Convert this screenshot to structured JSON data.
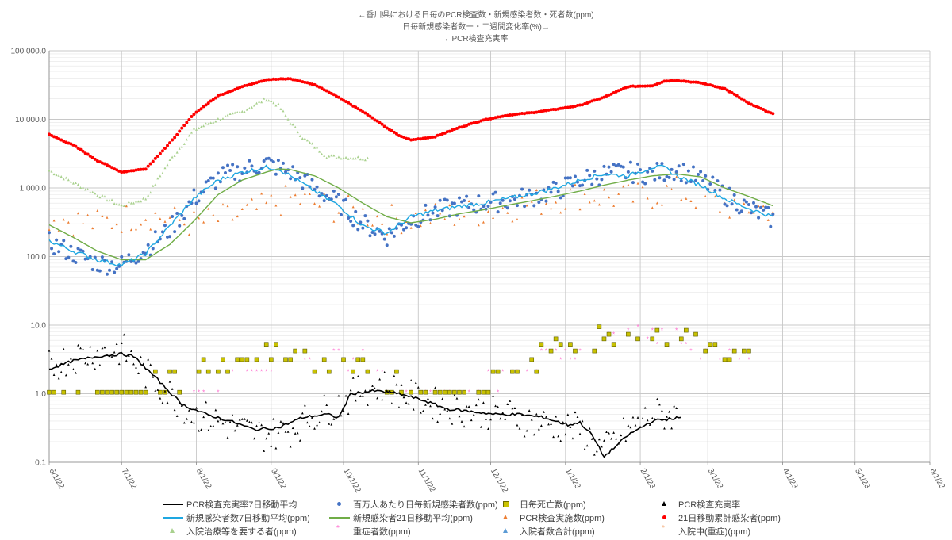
{
  "titles": {
    "line1": "←香川県における日毎のPCR検査数・新規感染者数・死者数(ppm)",
    "line2": "日毎新規感染者数ー・二週間変化率(%)→",
    "line3": "←PCR検査充実率"
  },
  "chart_data": {
    "type": "scatter",
    "y_scale": "log",
    "ylim": [
      0.1,
      100000
    ],
    "y_ticks": [
      "0.1",
      "1.0",
      "10.0",
      "100.0",
      "1,000.0",
      "10,000.0",
      "100,000.0"
    ],
    "x_ticks": [
      "6/1/22",
      "7/1/22",
      "8/1/22",
      "9/1/22",
      "10/1/22",
      "11/1/22",
      "12/1/22",
      "1/1/23",
      "2/1/23",
      "3/1/23",
      "4/1/23",
      "5/1/23",
      "6/1/23"
    ],
    "x_range": [
      "2022-06-01",
      "2023-06-01"
    ],
    "grid": true,
    "legend_position": "bottom",
    "series_anchors": {
      "cumulative_21d": [
        [
          0,
          6000
        ],
        [
          10,
          4200
        ],
        [
          20,
          2500
        ],
        [
          30,
          1700
        ],
        [
          40,
          1900
        ],
        [
          50,
          4500
        ],
        [
          60,
          12000
        ],
        [
          70,
          22000
        ],
        [
          80,
          30000
        ],
        [
          90,
          38000
        ],
        [
          100,
          39000
        ],
        [
          110,
          32000
        ],
        [
          120,
          21000
        ],
        [
          130,
          13000
        ],
        [
          140,
          7500
        ],
        [
          145,
          5800
        ],
        [
          150,
          5000
        ],
        [
          160,
          5600
        ],
        [
          170,
          7600
        ],
        [
          180,
          9800
        ],
        [
          190,
          11500
        ],
        [
          200,
          12500
        ],
        [
          210,
          14000
        ],
        [
          220,
          16000
        ],
        [
          230,
          21000
        ],
        [
          240,
          30000
        ],
        [
          250,
          31000
        ],
        [
          255,
          36000
        ],
        [
          260,
          37000
        ],
        [
          270,
          34000
        ],
        [
          280,
          28000
        ],
        [
          285,
          22000
        ],
        [
          290,
          17000
        ],
        [
          300,
          12000
        ]
      ],
      "per_million_daily": [
        [
          0,
          160
        ],
        [
          10,
          110
        ],
        [
          20,
          80
        ],
        [
          30,
          75
        ],
        [
          40,
          130
        ],
        [
          50,
          250
        ],
        [
          60,
          700
        ],
        [
          70,
          1400
        ],
        [
          80,
          1800
        ],
        [
          90,
          2300
        ],
        [
          100,
          1700
        ],
        [
          110,
          1000
        ],
        [
          120,
          600
        ],
        [
          130,
          300
        ],
        [
          140,
          200
        ],
        [
          150,
          350
        ],
        [
          160,
          450
        ],
        [
          170,
          550
        ],
        [
          180,
          600
        ],
        [
          190,
          650
        ],
        [
          200,
          750
        ],
        [
          210,
          900
        ],
        [
          220,
          1300
        ],
        [
          230,
          1600
        ],
        [
          240,
          1700
        ],
        [
          250,
          1600
        ],
        [
          260,
          1900
        ],
        [
          270,
          1300
        ],
        [
          280,
          800
        ],
        [
          290,
          500
        ],
        [
          300,
          350
        ]
      ],
      "ma7": [
        [
          0,
          170
        ],
        [
          10,
          120
        ],
        [
          20,
          90
        ],
        [
          30,
          75
        ],
        [
          40,
          110
        ],
        [
          50,
          280
        ],
        [
          60,
          700
        ],
        [
          70,
          1300
        ],
        [
          80,
          1700
        ],
        [
          90,
          2000
        ],
        [
          95,
          1900
        ],
        [
          100,
          1500
        ],
        [
          110,
          900
        ],
        [
          120,
          550
        ],
        [
          130,
          280
        ],
        [
          140,
          220
        ],
        [
          150,
          380
        ],
        [
          160,
          470
        ],
        [
          170,
          540
        ],
        [
          180,
          600
        ],
        [
          190,
          700
        ],
        [
          200,
          820
        ],
        [
          210,
          1000
        ],
        [
          220,
          1300
        ],
        [
          230,
          1600
        ],
        [
          240,
          1500
        ],
        [
          250,
          2000
        ],
        [
          255,
          2000
        ],
        [
          260,
          1500
        ],
        [
          270,
          1100
        ],
        [
          280,
          700
        ],
        [
          290,
          500
        ],
        [
          300,
          380
        ]
      ],
      "ma21": [
        [
          0,
          290
        ],
        [
          10,
          190
        ],
        [
          20,
          120
        ],
        [
          30,
          90
        ],
        [
          40,
          90
        ],
        [
          50,
          150
        ],
        [
          60,
          330
        ],
        [
          70,
          800
        ],
        [
          80,
          1300
        ],
        [
          90,
          1700
        ],
        [
          95,
          1900
        ],
        [
          100,
          1850
        ],
        [
          110,
          1500
        ],
        [
          120,
          1000
        ],
        [
          130,
          600
        ],
        [
          140,
          380
        ],
        [
          150,
          310
        ],
        [
          160,
          350
        ],
        [
          170,
          420
        ],
        [
          180,
          480
        ],
        [
          190,
          560
        ],
        [
          200,
          650
        ],
        [
          210,
          760
        ],
        [
          220,
          900
        ],
        [
          230,
          1100
        ],
        [
          240,
          1300
        ],
        [
          250,
          1500
        ],
        [
          260,
          1600
        ],
        [
          270,
          1450
        ],
        [
          280,
          1000
        ],
        [
          290,
          750
        ],
        [
          300,
          550
        ]
      ],
      "pcr_tests": [
        [
          0,
          380
        ],
        [
          20,
          300
        ],
        [
          40,
          420
        ],
        [
          60,
          300
        ],
        [
          80,
          400
        ],
        [
          100,
          700
        ],
        [
          120,
          500
        ],
        [
          140,
          350
        ],
        [
          160,
          380
        ],
        [
          180,
          450
        ],
        [
          200,
          600
        ],
        [
          220,
          800
        ],
        [
          240,
          700
        ],
        [
          260,
          900
        ],
        [
          280,
          550
        ],
        [
          300,
          500
        ]
      ],
      "hospital_need": [
        [
          0,
          1800
        ],
        [
          10,
          1200
        ],
        [
          20,
          800
        ],
        [
          30,
          550
        ],
        [
          40,
          700
        ],
        [
          50,
          2500
        ],
        [
          60,
          7000
        ],
        [
          70,
          10000
        ],
        [
          80,
          13000
        ],
        [
          90,
          20000
        ],
        [
          95,
          16000
        ],
        [
          100,
          9000
        ],
        [
          105,
          5500
        ],
        [
          110,
          4000
        ],
        [
          115,
          2900
        ],
        [
          132,
          2700
        ]
      ],
      "pcr_rate_ma7": [
        [
          0,
          2.3
        ],
        [
          10,
          3
        ],
        [
          20,
          3.5
        ],
        [
          30,
          3.8
        ],
        [
          35,
          3.5
        ],
        [
          45,
          1.6
        ],
        [
          55,
          0.7
        ],
        [
          65,
          0.5
        ],
        [
          75,
          0.4
        ],
        [
          85,
          0.3
        ],
        [
          95,
          0.32
        ],
        [
          105,
          0.45
        ],
        [
          115,
          0.5
        ],
        [
          120,
          0.45
        ],
        [
          125,
          1.0
        ],
        [
          135,
          1.1
        ],
        [
          145,
          1.0
        ],
        [
          155,
          0.8
        ],
        [
          165,
          0.6
        ],
        [
          175,
          0.55
        ],
        [
          185,
          0.5
        ],
        [
          195,
          0.5
        ],
        [
          205,
          0.45
        ],
        [
          215,
          0.35
        ],
        [
          220,
          0.38
        ],
        [
          225,
          0.25
        ],
        [
          230,
          0.12
        ],
        [
          240,
          0.25
        ],
        [
          250,
          0.4
        ],
        [
          262,
          0.45
        ]
      ],
      "pcr_rate": [
        [
          0,
          2.5
        ],
        [
          10,
          3.5
        ],
        [
          20,
          4
        ],
        [
          30,
          4.5
        ],
        [
          40,
          2
        ],
        [
          50,
          1
        ],
        [
          60,
          0.5
        ],
        [
          70,
          0.4
        ],
        [
          80,
          0.3
        ],
        [
          90,
          0.25
        ],
        [
          100,
          0.3
        ],
        [
          110,
          0.5
        ],
        [
          120,
          0.7
        ],
        [
          130,
          1.2
        ],
        [
          140,
          1.3
        ],
        [
          150,
          0.9
        ],
        [
          160,
          0.7
        ],
        [
          170,
          0.6
        ],
        [
          180,
          0.55
        ],
        [
          190,
          0.5
        ],
        [
          200,
          0.4
        ],
        [
          210,
          0.35
        ],
        [
          220,
          0.3
        ],
        [
          230,
          0.15
        ],
        [
          240,
          0.3
        ],
        [
          250,
          0.5
        ],
        [
          260,
          0.5
        ]
      ],
      "deaths": [
        [
          0,
          1.0
        ],
        [
          40,
          1.0
        ],
        [
          60,
          2.1
        ],
        [
          80,
          3.2
        ],
        [
          100,
          4.2
        ],
        [
          110,
          3.2
        ],
        [
          130,
          2.1
        ],
        [
          150,
          1.0
        ],
        [
          170,
          1.0
        ],
        [
          190,
          2.1
        ],
        [
          200,
          3.2
        ],
        [
          210,
          4.2
        ],
        [
          220,
          5.3
        ],
        [
          230,
          6.3
        ],
        [
          240,
          8.4
        ],
        [
          260,
          6.3
        ],
        [
          270,
          5.3
        ],
        [
          285,
          3.2
        ],
        [
          290,
          3.2
        ]
      ],
      "severe": [
        [
          60,
          1.0
        ],
        [
          80,
          2.1
        ],
        [
          100,
          3.2
        ],
        [
          120,
          4.2
        ],
        [
          135,
          2.1
        ],
        [
          150,
          1.0
        ],
        [
          170,
          1.0
        ],
        [
          190,
          2.1
        ],
        [
          210,
          3.2
        ],
        [
          230,
          6.3
        ],
        [
          245,
          8.4
        ],
        [
          260,
          6.3
        ],
        [
          270,
          4.2
        ],
        [
          290,
          4.2
        ]
      ]
    },
    "series": [
      {
        "name": "PCR検査充実率7日移動平均",
        "color": "#000000",
        "style": "line"
      },
      {
        "name": "百万人あたり日毎新規感染者数(ppm)",
        "color": "#4472c4",
        "style": "dot"
      },
      {
        "name": "日毎死亡数(ppm)",
        "color": "#c9c200",
        "style": "square"
      },
      {
        "name": "PCR検査充実率",
        "color": "#000000",
        "style": "triangle"
      },
      {
        "name": "新規感染者数7日移動平均(ppm)",
        "color": "#1ea7e1",
        "style": "line"
      },
      {
        "name": "新規感染者21日移動平均(ppm)",
        "color": "#70ad47",
        "style": "line"
      },
      {
        "name": "PCR検査実施数(ppm)",
        "color": "#ed7d31",
        "style": "triangle"
      },
      {
        "name": "21日移動累計感染者(ppm)",
        "color": "#ff0000",
        "style": "dot"
      },
      {
        "name": "入院治療等を要する者(ppm)",
        "color": "#a9d18e",
        "style": "triangle"
      },
      {
        "name": "重症者数(ppm)",
        "color": "#ff66cc",
        "style": "star"
      },
      {
        "name": "入院者数合計(ppm)",
        "color": "#5b9bd5",
        "style": "triangle"
      },
      {
        "name": "入院中(重症)(ppm)",
        "color": "#f4b183",
        "style": "star"
      }
    ]
  }
}
